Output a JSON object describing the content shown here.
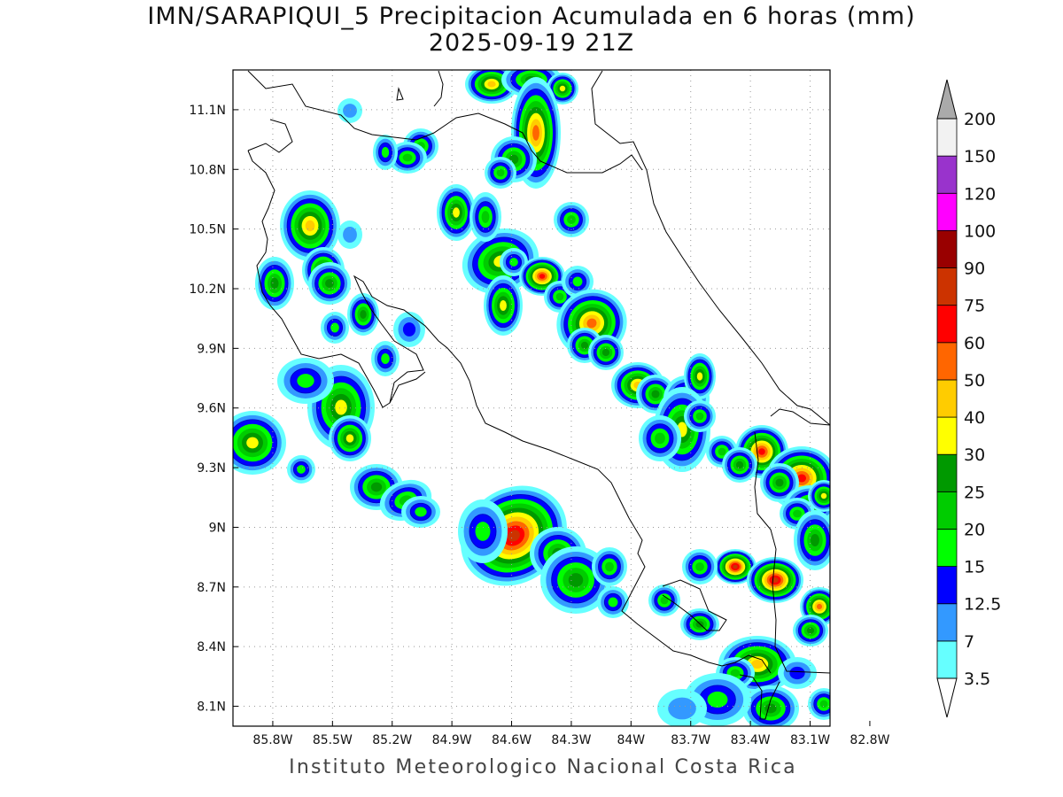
{
  "title": {
    "line1": "IMN/SARAPIQUI_5 Precipitacion Acumulada en 6 horas (mm)",
    "line2": "2025-09-19 21Z"
  },
  "footer": "Instituto Meteorologico Nacional Costa Rica",
  "map": {
    "lon_range": [
      -86.0,
      -83.0
    ],
    "lat_range": [
      8.0,
      11.3
    ],
    "lon_ticks": [
      {
        "value": -85.8,
        "label": "85.8W"
      },
      {
        "value": -85.5,
        "label": "85.5W"
      },
      {
        "value": -85.2,
        "label": "85.2W"
      },
      {
        "value": -84.9,
        "label": "84.9W"
      },
      {
        "value": -84.6,
        "label": "84.6W"
      },
      {
        "value": -84.3,
        "label": "84.3W"
      },
      {
        "value": -84.0,
        "label": "84W"
      },
      {
        "value": -83.7,
        "label": "83.7W"
      },
      {
        "value": -83.4,
        "label": "83.4W"
      },
      {
        "value": -83.1,
        "label": "83.1W"
      },
      {
        "value": -82.8,
        "label": "82.8W"
      }
    ],
    "lat_ticks": [
      {
        "value": 8.1,
        "label": "8.1N"
      },
      {
        "value": 8.4,
        "label": "8.4N"
      },
      {
        "value": 8.7,
        "label": "8.7N"
      },
      {
        "value": 9.0,
        "label": "9N"
      },
      {
        "value": 9.3,
        "label": "9.3N"
      },
      {
        "value": 9.6,
        "label": "9.6N"
      },
      {
        "value": 9.9,
        "label": "9.9N"
      },
      {
        "value": 10.2,
        "label": "10.2N"
      },
      {
        "value": 10.5,
        "label": "10.5N"
      },
      {
        "value": 10.8,
        "label": "10.8N"
      },
      {
        "value": 11.1,
        "label": "11.1N"
      }
    ],
    "grid": "dotted"
  },
  "legend": {
    "levels": [
      "3.5",
      "7",
      "12.5",
      "15",
      "20",
      "25",
      "30",
      "40",
      "50",
      "60",
      "75",
      "90",
      "100",
      "120",
      "150",
      "200"
    ],
    "colors": [
      "#66ffff",
      "#3399ff",
      "#0000ff",
      "#00ff00",
      "#00cc00",
      "#009900",
      "#ffff00",
      "#ffcc00",
      "#ff6600",
      "#ff0000",
      "#cc3300",
      "#990000",
      "#ff00ff",
      "#9933cc",
      "#f2f2f2"
    ],
    "over_color": "#aaaaaa",
    "under_color": "#ffffff"
  }
}
